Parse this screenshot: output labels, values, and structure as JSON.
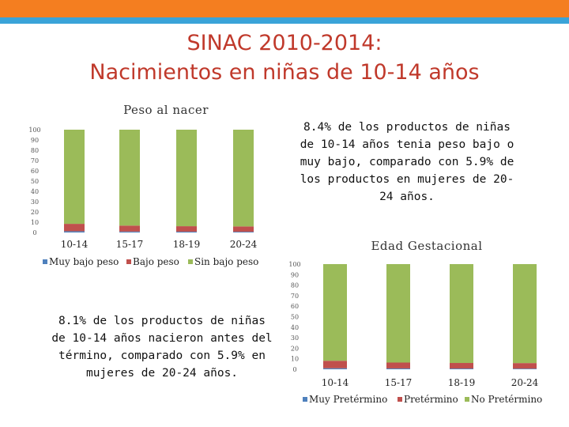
{
  "header": {
    "title_line1": "SINAC 2010-2014:",
    "title_line2": "Nacimientos en niñas de 10-14 años"
  },
  "colors": {
    "accent_orange": "#f47e20",
    "accent_blue": "#3aa3d8",
    "title_red": "#c0392b",
    "series_blue": "#4f81bd",
    "series_red": "#c0504d",
    "series_green": "#9bbb59"
  },
  "notes": {
    "peso_note": "8.4% de los productos de niñas de 10-14 años tenia peso bajo o muy bajo, comparado con 5.9% de los productos en mujeres de 20-24 años.",
    "edad_note": "8.1% de los productos de niñas de 10-14 años nacieron antes del término, comparado con 5.9% en mujeres de 20-24 años."
  },
  "chart_data": [
    {
      "type": "bar",
      "stacked": true,
      "title": "Peso al nacer",
      "categories": [
        "10-14",
        "15-17",
        "18-19",
        "20-24"
      ],
      "ylim": [
        0,
        100
      ],
      "yticks": [
        "0",
        "10",
        "20",
        "30",
        "40",
        "50",
        "60",
        "70",
        "80",
        "90",
        "100"
      ],
      "legend_position": "bottom",
      "grid": false,
      "series": [
        {
          "name": "Muy bajo peso",
          "color": "#4f81bd",
          "values": [
            1.2,
            0.9,
            0.8,
            0.7
          ]
        },
        {
          "name": "Bajo peso",
          "color": "#c0504d",
          "values": [
            7.2,
            5.8,
            5.3,
            5.2
          ]
        },
        {
          "name": "Sin bajo peso",
          "color": "#9bbb59",
          "values": [
            91.6,
            93.3,
            93.9,
            94.1
          ]
        }
      ]
    },
    {
      "type": "bar",
      "stacked": true,
      "title": "Edad Gestacional",
      "categories": [
        "10-14",
        "15-17",
        "18-19",
        "20-24"
      ],
      "ylim": [
        0,
        100
      ],
      "yticks": [
        "0",
        "10",
        "20",
        "30",
        "40",
        "50",
        "60",
        "70",
        "80",
        "90",
        "100"
      ],
      "legend_position": "bottom",
      "grid": false,
      "series": [
        {
          "name": "Muy Pretérmino",
          "color": "#4f81bd",
          "values": [
            1.0,
            0.8,
            0.7,
            0.6
          ]
        },
        {
          "name": "Pretérmino",
          "color": "#c0504d",
          "values": [
            7.1,
            5.6,
            5.3,
            5.3
          ]
        },
        {
          "name": "No Pretérmino",
          "color": "#9bbb59",
          "values": [
            91.9,
            93.6,
            94.0,
            94.1
          ]
        }
      ]
    }
  ]
}
